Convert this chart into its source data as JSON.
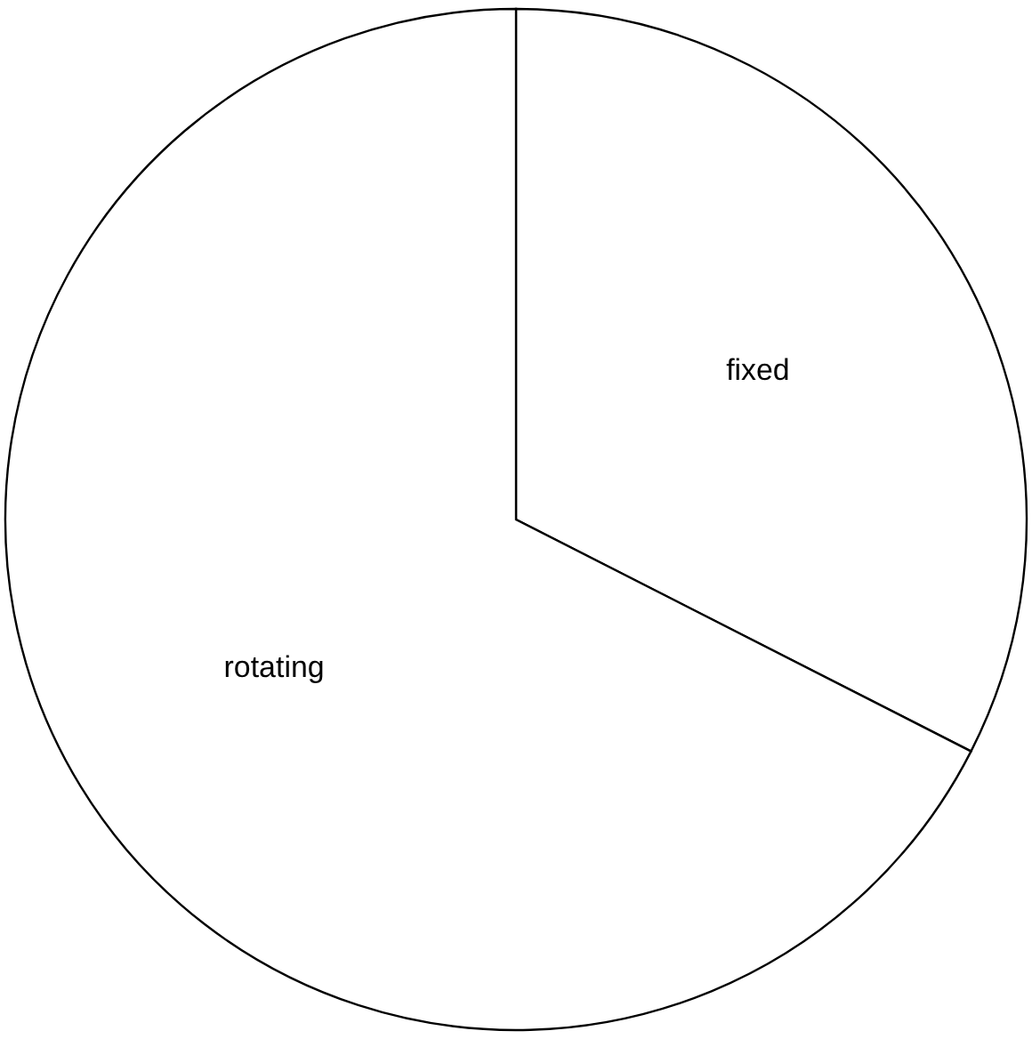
{
  "chart_data": {
    "type": "pie",
    "categories": [
      "fixed",
      "rotating"
    ],
    "values": [
      32.5,
      67.5
    ],
    "colors": [
      "#ffffff",
      "#ffffff"
    ]
  }
}
